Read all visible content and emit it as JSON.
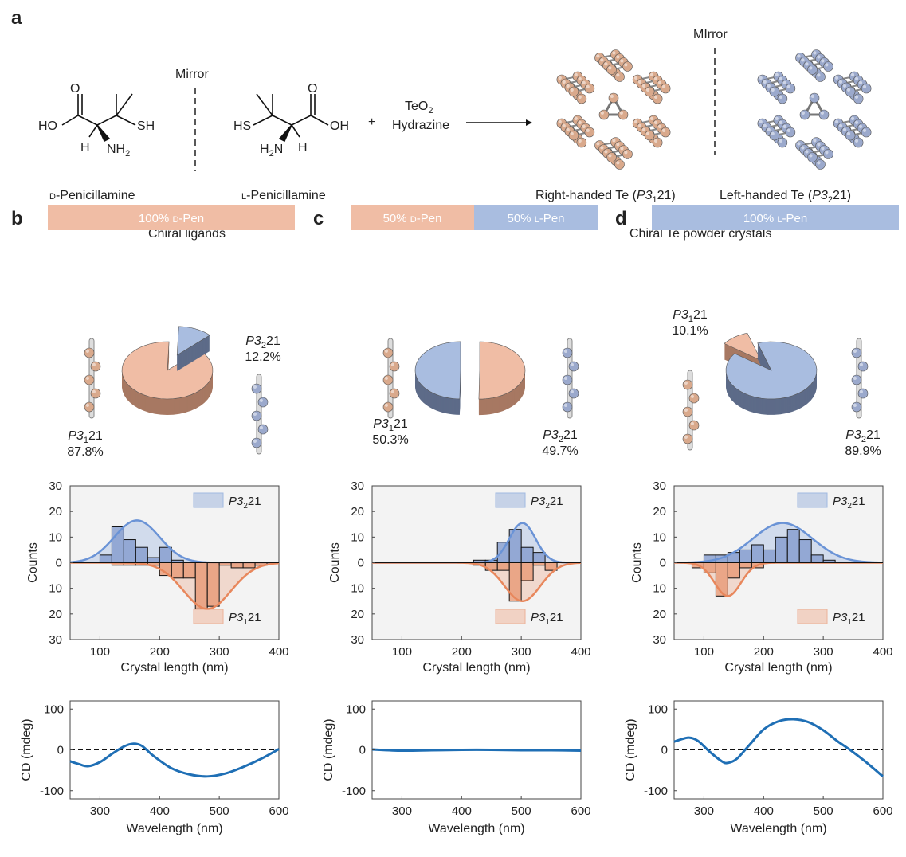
{
  "panel_labels": [
    "a",
    "b",
    "c",
    "d"
  ],
  "panel_a": {
    "mirror_left": "Mirror",
    "mirror_right": "MIrror",
    "d_pen": {
      "ho": "HO",
      "o": "O",
      "sh": "SH",
      "h": "H",
      "nh": "NH",
      "sub": "2",
      "name_prefix": "D",
      "name": "-Penicillamine"
    },
    "l_pen": {
      "hs": "HS",
      "o": "O",
      "oh": "OH",
      "h": "H",
      "hn": "H",
      "sub": "2",
      "n": "N",
      "name_prefix": "L",
      "name": "-Penicillamine"
    },
    "plus": "+",
    "reagent_1": "TeO",
    "reagent_1_sub": "2",
    "reagent_2": "Hydrazine",
    "chiral_ligands": "Chiral ligands",
    "right_te": "Right-handed Te (",
    "right_sg": "P3",
    "right_sub": "1",
    "right_end": "21)",
    "left_te": "Left-handed Te (",
    "left_sg": "P3",
    "left_sub": "2",
    "left_end": "21)",
    "powder": "Chiral Te powder crystals"
  },
  "colors": {
    "orange": "#f0bda5",
    "orange_dark": "#e8956f",
    "orange_line": "#e8875c",
    "blue": "#a9bde0",
    "blue_dark": "#7d97cc",
    "blue_line": "#6a93d6",
    "cd_line": "#1f6fb5",
    "plot_bg": "#f3f3f3"
  },
  "panels": [
    {
      "id": "b",
      "bar": [
        {
          "label": "100% ",
          "prefix": "D",
          "suffix": "-Pen",
          "frac": 1.0,
          "color": "orange"
        }
      ],
      "pie": {
        "p31": 87.8,
        "p32": 12.2
      },
      "pie_labels": {
        "p32_sg": "P3",
        "p32_sub": "2",
        "p32_end": "21",
        "p32_val": "12.2%",
        "p31_sg": "P3",
        "p31_sub": "1",
        "p31_end": "21",
        "p31_val": "87.8%"
      }
    },
    {
      "id": "c",
      "bar": [
        {
          "label": "50% ",
          "prefix": "D",
          "suffix": "-Pen",
          "frac": 0.5,
          "color": "orange"
        },
        {
          "label": "50% ",
          "prefix": "L",
          "suffix": "-Pen",
          "frac": 0.5,
          "color": "blue"
        }
      ],
      "pie": {
        "p31": 50.3,
        "p32": 49.7
      },
      "pie_labels": {
        "p32_sg": "P3",
        "p32_sub": "2",
        "p32_end": "21",
        "p32_val": "49.7%",
        "p31_sg": "P3",
        "p31_sub": "1",
        "p31_end": "21",
        "p31_val": "50.3%"
      }
    },
    {
      "id": "d",
      "bar": [
        {
          "label": "100% ",
          "prefix": "L",
          "suffix": "-Pen",
          "frac": 1.0,
          "color": "blue"
        }
      ],
      "pie": {
        "p31": 10.1,
        "p32": 89.9
      },
      "pie_labels": {
        "p32_sg": "P3",
        "p32_sub": "2",
        "p32_end": "21",
        "p32_val": "89.9%",
        "p31_sg": "P3",
        "p31_sub": "1",
        "p31_end": "21",
        "p31_val": "10.1%"
      }
    }
  ],
  "chart_data": [
    {
      "panel": "b",
      "type": "bar",
      "kind": "mirrored histogram with gaussian fits",
      "xlabel": "Crystal length (nm)",
      "ylabel": "Counts",
      "xlim": [
        50,
        400
      ],
      "ylim": [
        -30,
        30
      ],
      "xticks": [
        100,
        200,
        300,
        400
      ],
      "yticks_labels": [
        "30",
        "20",
        "10",
        "0",
        "10",
        "20",
        "30"
      ],
      "bin_width": 20,
      "series": [
        {
          "name": "P3₂21",
          "sign": 1,
          "bin_starts": [
            100,
            120,
            140,
            160,
            180,
            200,
            220
          ],
          "values": [
            3,
            14,
            9,
            6,
            2,
            6,
            1
          ],
          "fit": {
            "mean": 162,
            "sd": 38,
            "peak": 16.5
          }
        },
        {
          "name": "P3₁21",
          "sign": -1,
          "bin_starts": [
            120,
            140,
            160,
            180,
            200,
            220,
            240,
            260,
            280,
            300,
            320,
            340,
            360
          ],
          "values": [
            1,
            1,
            1,
            1,
            5,
            6,
            6,
            18,
            17,
            1,
            2,
            2,
            1
          ],
          "fit": {
            "mean": 280,
            "sd": 40,
            "peak": 18
          }
        }
      ]
    },
    {
      "panel": "c",
      "type": "bar",
      "kind": "mirrored histogram with gaussian fits",
      "xlabel": "Crystal length (nm)",
      "ylabel": "Counts",
      "xlim": [
        50,
        400
      ],
      "ylim": [
        -30,
        30
      ],
      "xticks": [
        100,
        200,
        300,
        400
      ],
      "yticks_labels": [
        "30",
        "20",
        "10",
        "0",
        "10",
        "20",
        "30"
      ],
      "bin_width": 20,
      "series": [
        {
          "name": "P3₂21",
          "sign": 1,
          "bin_starts": [
            220,
            240,
            260,
            280,
            300,
            320
          ],
          "values": [
            1,
            1,
            8,
            13,
            6,
            4
          ],
          "fit": {
            "mean": 302,
            "sd": 22,
            "peak": 15.5
          }
        },
        {
          "name": "P3₁21",
          "sign": -1,
          "bin_starts": [
            220,
            240,
            260,
            280,
            300,
            320,
            340
          ],
          "values": [
            1,
            3,
            3,
            15,
            7,
            1,
            3
          ],
          "fit": {
            "mean": 302,
            "sd": 30,
            "peak": 15
          }
        }
      ]
    },
    {
      "panel": "d",
      "type": "bar",
      "kind": "mirrored histogram with gaussian fits",
      "xlabel": "Crystal length (nm)",
      "ylabel": "Counts",
      "xlim": [
        50,
        400
      ],
      "ylim": [
        -30,
        30
      ],
      "xticks": [
        100,
        200,
        300,
        400
      ],
      "yticks_labels": [
        "30",
        "20",
        "10",
        "0",
        "10",
        "20",
        "30"
      ],
      "bin_width": 20,
      "series": [
        {
          "name": "P3₂21",
          "sign": 1,
          "bin_starts": [
            100,
            120,
            140,
            160,
            180,
            200,
            220,
            240,
            260,
            280,
            300
          ],
          "values": [
            3,
            3,
            4,
            5,
            7,
            5,
            10,
            13,
            9,
            3,
            1
          ],
          "fit": {
            "mean": 232,
            "sd": 50,
            "peak": 15.5
          }
        },
        {
          "name": "P3₁21",
          "sign": -1,
          "bin_starts": [
            80,
            100,
            120,
            140,
            160,
            180
          ],
          "values": [
            2,
            4,
            13,
            6,
            2,
            2
          ],
          "fit": {
            "mean": 140,
            "sd": 22,
            "peak": 13
          }
        }
      ]
    },
    {
      "panel": "b",
      "type": "line",
      "xlabel": "Wavelength (nm)",
      "ylabel": "CD (mdeg)",
      "xlim": [
        250,
        600
      ],
      "ylim": [
        -120,
        120
      ],
      "xticks": [
        300,
        400,
        500,
        600
      ],
      "yticks": [
        100,
        0,
        -100
      ],
      "zero_line": "dashed",
      "x": [
        250,
        265,
        280,
        300,
        320,
        340,
        355,
        370,
        390,
        420,
        450,
        480,
        510,
        540,
        570,
        600
      ],
      "y": [
        -28,
        -35,
        -40,
        -30,
        -10,
        8,
        15,
        10,
        -15,
        -45,
        -60,
        -65,
        -58,
        -42,
        -22,
        2
      ]
    },
    {
      "panel": "c",
      "type": "line",
      "xlabel": "Wavelength (nm)",
      "ylabel": "CD (mdeg)",
      "xlim": [
        250,
        600
      ],
      "ylim": [
        -120,
        120
      ],
      "xticks": [
        300,
        400,
        500,
        600
      ],
      "yticks": [
        100,
        0,
        -100
      ],
      "zero_line": "dashed",
      "x": [
        250,
        300,
        350,
        400,
        450,
        500,
        550,
        600
      ],
      "y": [
        1,
        -2,
        -1,
        0,
        0,
        -1,
        -1,
        -2
      ]
    },
    {
      "panel": "d",
      "type": "line",
      "xlabel": "Wavelength (nm)",
      "ylabel": "CD (mdeg)",
      "xlim": [
        250,
        600
      ],
      "ylim": [
        -120,
        120
      ],
      "xticks": [
        300,
        400,
        500,
        600
      ],
      "yticks": [
        100,
        0,
        -100
      ],
      "zero_line": "dashed",
      "x": [
        250,
        260,
        275,
        290,
        310,
        330,
        340,
        355,
        375,
        400,
        425,
        450,
        475,
        500,
        525,
        545,
        570,
        600
      ],
      "y": [
        20,
        25,
        30,
        22,
        -5,
        -28,
        -32,
        -22,
        10,
        50,
        70,
        75,
        68,
        48,
        20,
        0,
        -28,
        -65
      ]
    }
  ]
}
